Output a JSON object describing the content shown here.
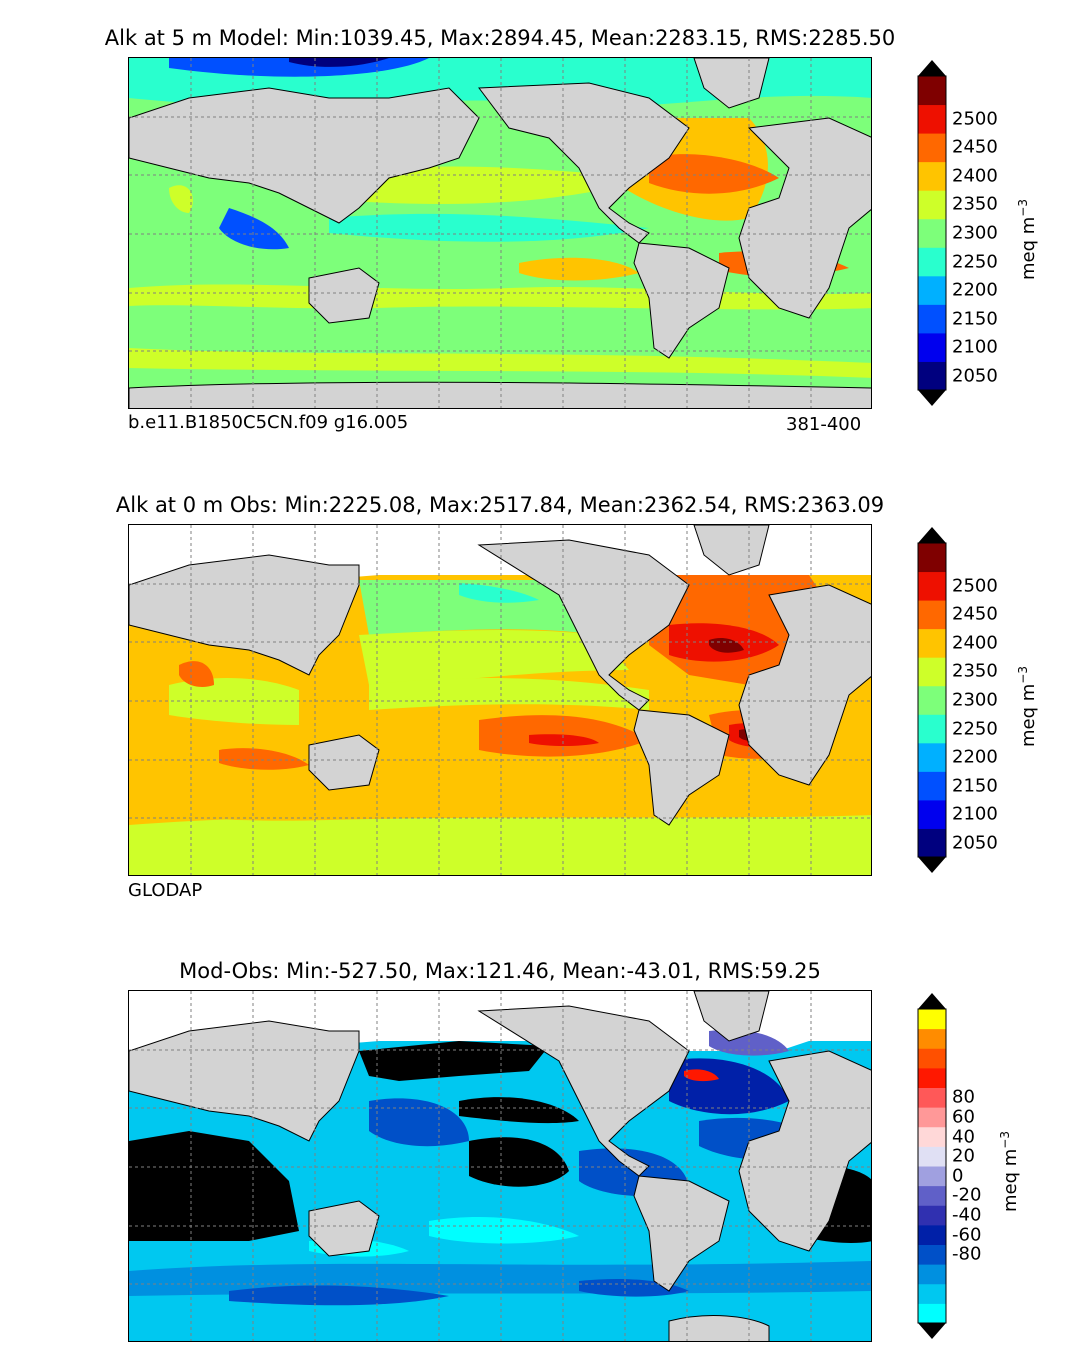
{
  "panels": [
    {
      "title": "Alk at 5 m Model: Min:1039.45, Max:2894.45, Mean:2283.15, RMS:2285.50",
      "note_left": "b.e11.B1850C5CN.f09 g16.005",
      "note_right": "381-400",
      "colorbar": {
        "unit": "meq m",
        "unit_exp": "−3",
        "ticks": [
          "2050",
          "2100",
          "2150",
          "2200",
          "2250",
          "2300",
          "2350",
          "2400",
          "2450",
          "2500"
        ],
        "colors": [
          "#00007f",
          "#0000ee",
          "#0050ff",
          "#00b0ff",
          "#29ffce",
          "#7dff7a",
          "#ceff29",
          "#ffc400",
          "#ff6800",
          "#ee1000",
          "#7f0000"
        ]
      }
    },
    {
      "title": "Alk at 0 m Obs: Min:2225.08, Max:2517.84, Mean:2362.54, RMS:2363.09",
      "note_left": "GLODAP",
      "colorbar": {
        "unit": "meq m",
        "unit_exp": "−3",
        "ticks": [
          "2050",
          "2100",
          "2150",
          "2200",
          "2250",
          "2300",
          "2350",
          "2400",
          "2450",
          "2500"
        ],
        "colors": [
          "#00007f",
          "#0000ee",
          "#0050ff",
          "#00b0ff",
          "#29ffce",
          "#7dff7a",
          "#ceff29",
          "#ffc400",
          "#ff6800",
          "#ee1000",
          "#7f0000"
        ]
      }
    },
    {
      "title": "Mod-Obs: Min:-527.50, Max:121.46, Mean:-43.01, RMS:59.25",
      "colorbar": {
        "unit": "meq m",
        "unit_exp": "−3",
        "ticks": [
          "-80",
          "-60",
          "-40",
          "-20",
          "0",
          "20",
          "40",
          "60",
          "80"
        ],
        "colors": [
          "#00ffff",
          "#00c8f0",
          "#0090e0",
          "#0050c8",
          "#0020a8",
          "#3030b0",
          "#6060c8",
          "#a0a0e0",
          "#e0e0f4",
          "#ffd8d8",
          "#ff9898",
          "#ff5858",
          "#ff1800",
          "#ff5000",
          "#ff8c00",
          "#ffff00"
        ]
      }
    }
  ],
  "colors": {
    "land": "#d3d3d3",
    "no_data": "#ffffff",
    "grid": "#808080"
  }
}
